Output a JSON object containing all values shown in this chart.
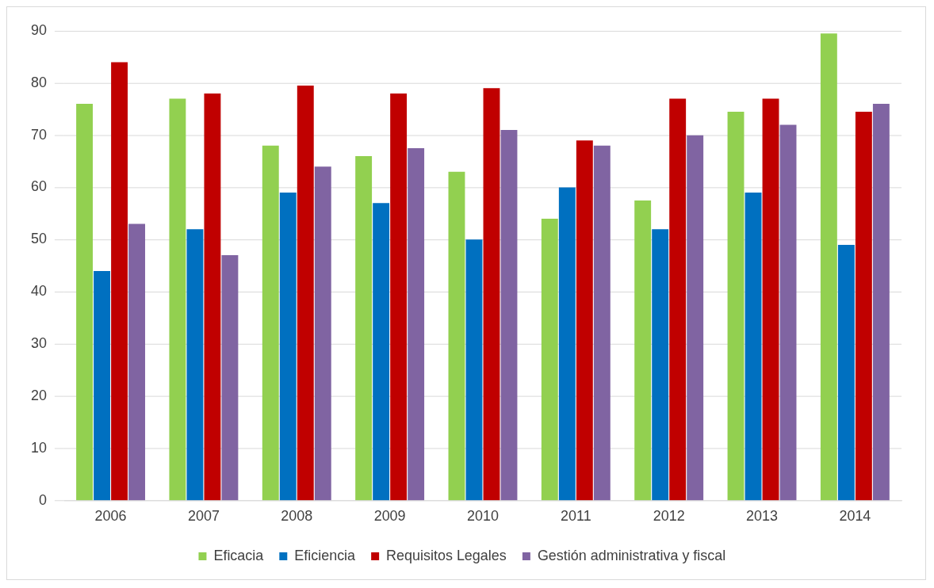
{
  "chart_data": {
    "type": "bar",
    "categories": [
      "2006",
      "2007",
      "2008",
      "2009",
      "2010",
      "2011",
      "2012",
      "2013",
      "2014"
    ],
    "series": [
      {
        "name": "Eficacia",
        "color": "#92d050",
        "values": [
          76,
          77,
          68,
          66,
          63,
          54,
          57.5,
          74.5,
          89.5
        ]
      },
      {
        "name": "Eficiencia",
        "color": "#0070c0",
        "values": [
          44,
          52,
          59,
          57,
          50,
          60,
          52,
          59,
          49
        ]
      },
      {
        "name": "Requisitos Legales",
        "color": "#c00000",
        "values": [
          84,
          78,
          79.5,
          78,
          79,
          69,
          77,
          77,
          74.5
        ]
      },
      {
        "name": "Gestión administrativa y fiscal",
        "color": "#8064a2",
        "values": [
          53,
          47,
          64,
          67.5,
          71,
          68,
          70,
          72,
          76
        ]
      }
    ],
    "ylim": [
      0,
      90
    ],
    "yticks": [
      0,
      10,
      20,
      30,
      40,
      50,
      60,
      70,
      80,
      90
    ],
    "grid": "y",
    "legend": "bottom"
  }
}
